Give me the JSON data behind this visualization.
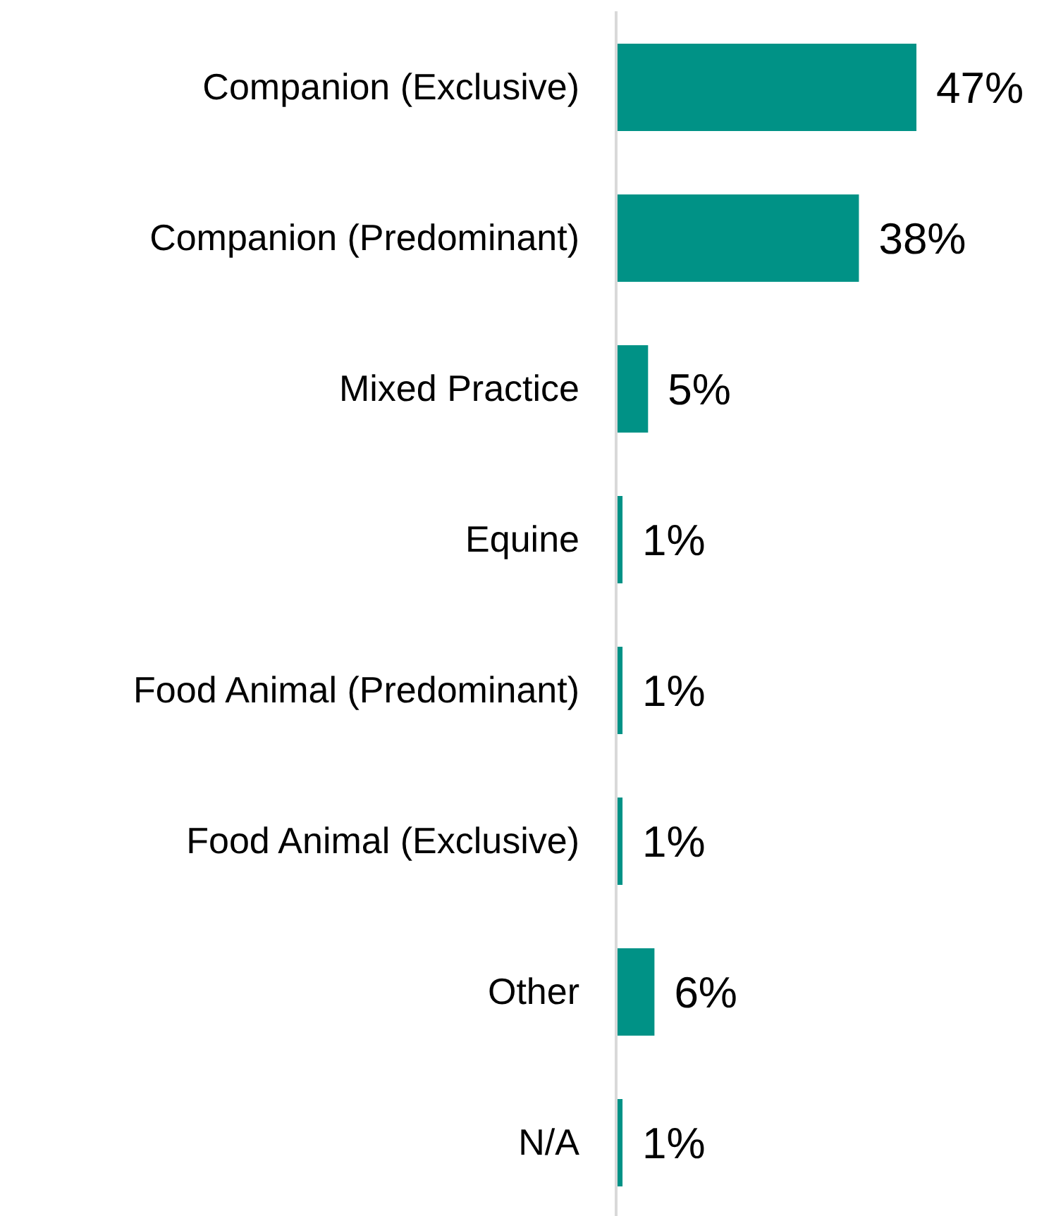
{
  "chart_data": {
    "type": "bar",
    "orientation": "horizontal",
    "categories": [
      "Companion (Exclusive)",
      "Companion (Predominant)",
      "Mixed Practice",
      "Equine",
      "Food Animal (Predominant)",
      "Food Animal (Exclusive)",
      "Other",
      "N/A"
    ],
    "values": [
      47,
      38,
      5,
      1,
      1,
      1,
      6,
      1
    ],
    "value_labels": [
      "47%",
      "38%",
      "5%",
      "1%",
      "1%",
      "1%",
      "6%",
      "1%"
    ],
    "color": "#009286",
    "grid": false
  }
}
